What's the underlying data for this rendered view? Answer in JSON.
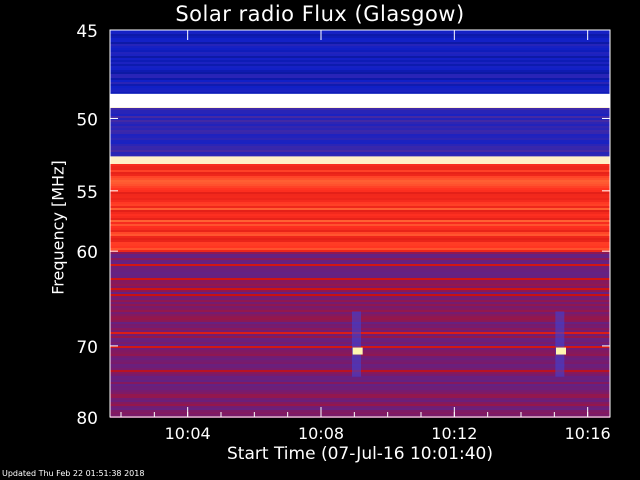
{
  "chart_data": {
    "type": "heatmap",
    "title": "Solar radio Flux (Glasgow)",
    "xlabel": "Start Time (07-Jul-16 10:01:40)",
    "ylabel": "Frequency [MHz]",
    "x_ticks": [
      "10:04",
      "10:08",
      "10:12",
      "10:16"
    ],
    "x_tick_minutes": [
      4,
      8,
      12,
      16
    ],
    "xlim_minutes": [
      1.67,
      16.67
    ],
    "y_ticks": [
      45,
      50,
      55,
      60,
      70,
      80
    ],
    "ylim": [
      45,
      80
    ],
    "y_scale": "reciprocal",
    "colormap": [
      "#050a5a",
      "#1020c8",
      "#4a2aa0",
      "#7a1a6a",
      "#c81010",
      "#ff3020",
      "#ffd060",
      "#ffffff"
    ],
    "bands": [
      {
        "freq_min": 45,
        "freq_max": 48.5,
        "level": 0.15
      },
      {
        "freq_min": 48.5,
        "freq_max": 49.3,
        "level": 1.0
      },
      {
        "freq_min": 49.3,
        "freq_max": 52.5,
        "level": 0.22
      },
      {
        "freq_min": 52.5,
        "freq_max": 53.0,
        "level": 0.95
      },
      {
        "freq_min": 53.0,
        "freq_max": 60,
        "level": 0.7
      },
      {
        "freq_min": 60,
        "freq_max": 80,
        "level": 0.42
      }
    ],
    "hot_spots": [
      {
        "time_minutes": 9.1,
        "freq": 70.7
      },
      {
        "time_minutes": 15.2,
        "freq": 70.7
      }
    ]
  },
  "footer": "Updated Thu Feb 22 01:51:38 2018"
}
